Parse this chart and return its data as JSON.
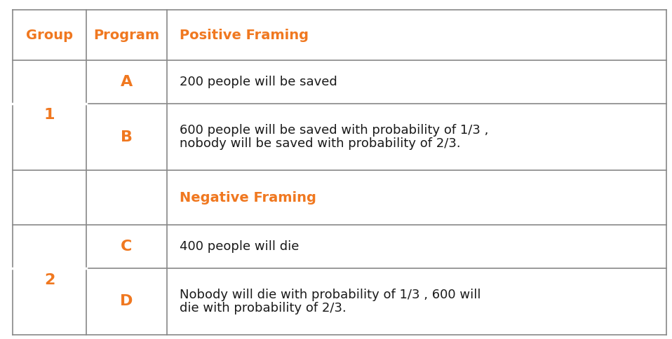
{
  "orange_color": "#F07820",
  "text_color": "#1a1a1a",
  "line_color": "#888888",
  "bg_color": "#ffffff",
  "header_fontsize": 14,
  "cell_fontsize": 13,
  "group_fontsize": 16,
  "program_fontsize": 16,
  "col1_label": "Group",
  "col2_label": "Program",
  "col3_label": "Positive Framing",
  "neg_label": "Negative Framing",
  "rows": [
    {
      "group": "1",
      "program": "A",
      "desc_lines": [
        "200 people will be saved"
      ],
      "is_section": false,
      "group_span": true
    },
    {
      "group": "",
      "program": "B",
      "desc_lines": [
        "600 people will be saved with probability of 1/3 ,",
        "nobody will be saved with probability of 2/3."
      ],
      "is_section": false,
      "group_span": false
    },
    {
      "group": "",
      "program": "",
      "desc_lines": [
        "Negative Framing"
      ],
      "is_section": true,
      "group_span": false
    },
    {
      "group": "2",
      "program": "C",
      "desc_lines": [
        "400 people will die"
      ],
      "is_section": false,
      "group_span": true
    },
    {
      "group": "",
      "program": "D",
      "desc_lines": [
        "Nobody will die with probability of 1/3 , 600 will",
        "die with probability of 2/3."
      ],
      "is_section": false,
      "group_span": false
    }
  ]
}
